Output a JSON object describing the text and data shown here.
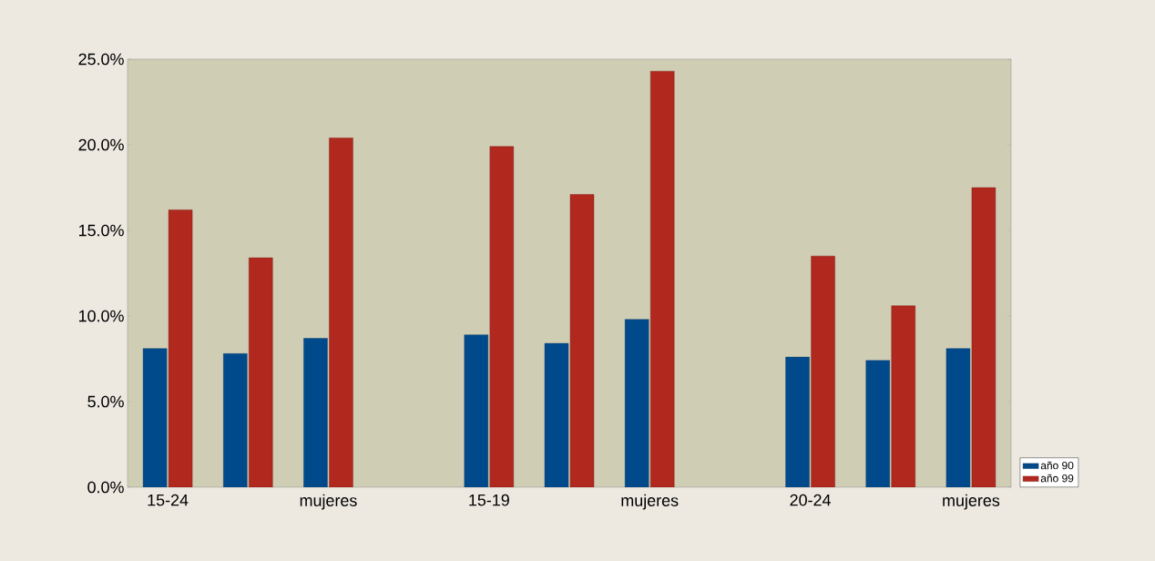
{
  "chart_data": {
    "type": "bar",
    "categories": [
      "15-24",
      null,
      "mujeres",
      null,
      "15-19",
      null,
      "mujeres",
      null,
      "20-24",
      null,
      "mujeres"
    ],
    "series": [
      {
        "name": "año 90",
        "color": "#004a8c",
        "values": [
          8.1,
          7.8,
          8.7,
          null,
          8.9,
          8.4,
          9.8,
          null,
          7.6,
          7.4,
          8.1
        ]
      },
      {
        "name": "año 99",
        "color": "#b0281e",
        "values": [
          16.2,
          13.4,
          20.4,
          null,
          19.9,
          17.1,
          24.3,
          null,
          13.5,
          10.6,
          17.5
        ]
      }
    ],
    "ylim": [
      0,
      25
    ],
    "yticks": [
      {
        "value": 0,
        "label": "0.0%"
      },
      {
        "value": 5,
        "label": "5.0%"
      },
      {
        "value": 10,
        "label": "10.0%"
      },
      {
        "value": 15,
        "label": "15.0%"
      },
      {
        "value": 20,
        "label": "20.0%"
      },
      {
        "value": 25,
        "label": "25.0%"
      }
    ],
    "legend": "bottom right"
  }
}
